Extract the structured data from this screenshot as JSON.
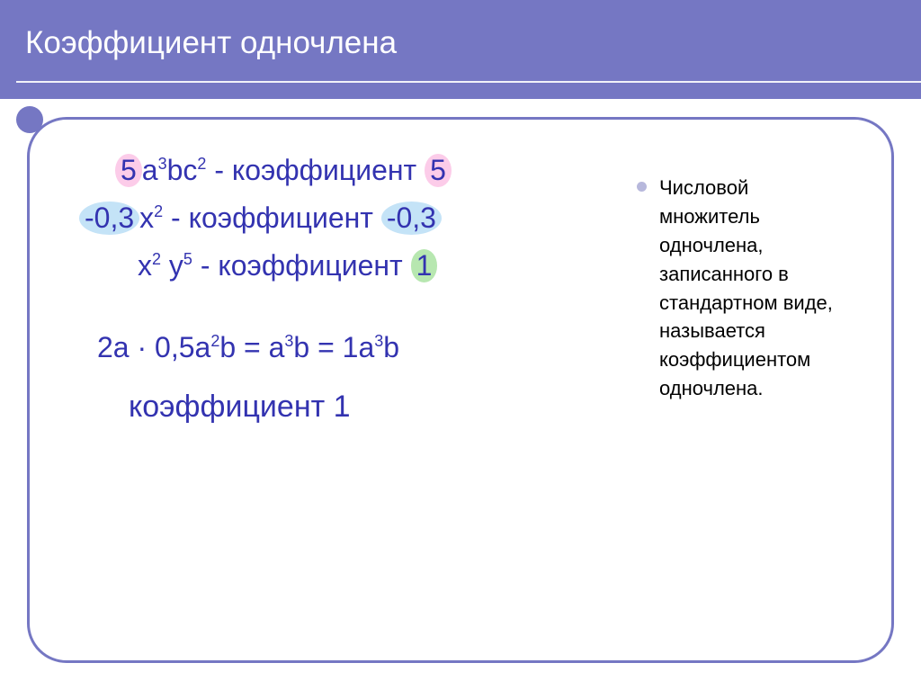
{
  "header": {
    "title": "Коэффициент одночлена"
  },
  "definition": {
    "text": "Числовой множитель одночлена, записанного в стандартном виде, называется коэффициентом одночлена."
  },
  "examples": {
    "line1": {
      "lead_num": "5",
      "lead_rest_html": "a<sup>3</sup>bc<sup>2</sup>",
      "word": " - коэффициент ",
      "coef": "5"
    },
    "line2": {
      "lead_num": "-0,3",
      "lead_rest_html": "x<sup>2</sup>",
      "word": "  - коэффициент ",
      "coef": "-0,3"
    },
    "line3": {
      "lead_rest_html": "x<sup>2</sup> y<sup>5</sup>",
      "word": "  - коэффициент  ",
      "coef": "1"
    },
    "line4_html": "2a · 0,5a<sup>2</sup>b = a<sup>3</sup>b = 1a<sup>3</sup>b",
    "final": "коэффициент 1"
  },
  "colors": {
    "accent": "#7577c3",
    "math_text": "#3333b0",
    "pink_pill": "#fccce9",
    "blue_pill": "#c4e3f7",
    "green_pill": "#b7e7b0",
    "bullet": "#b7b8dc"
  }
}
